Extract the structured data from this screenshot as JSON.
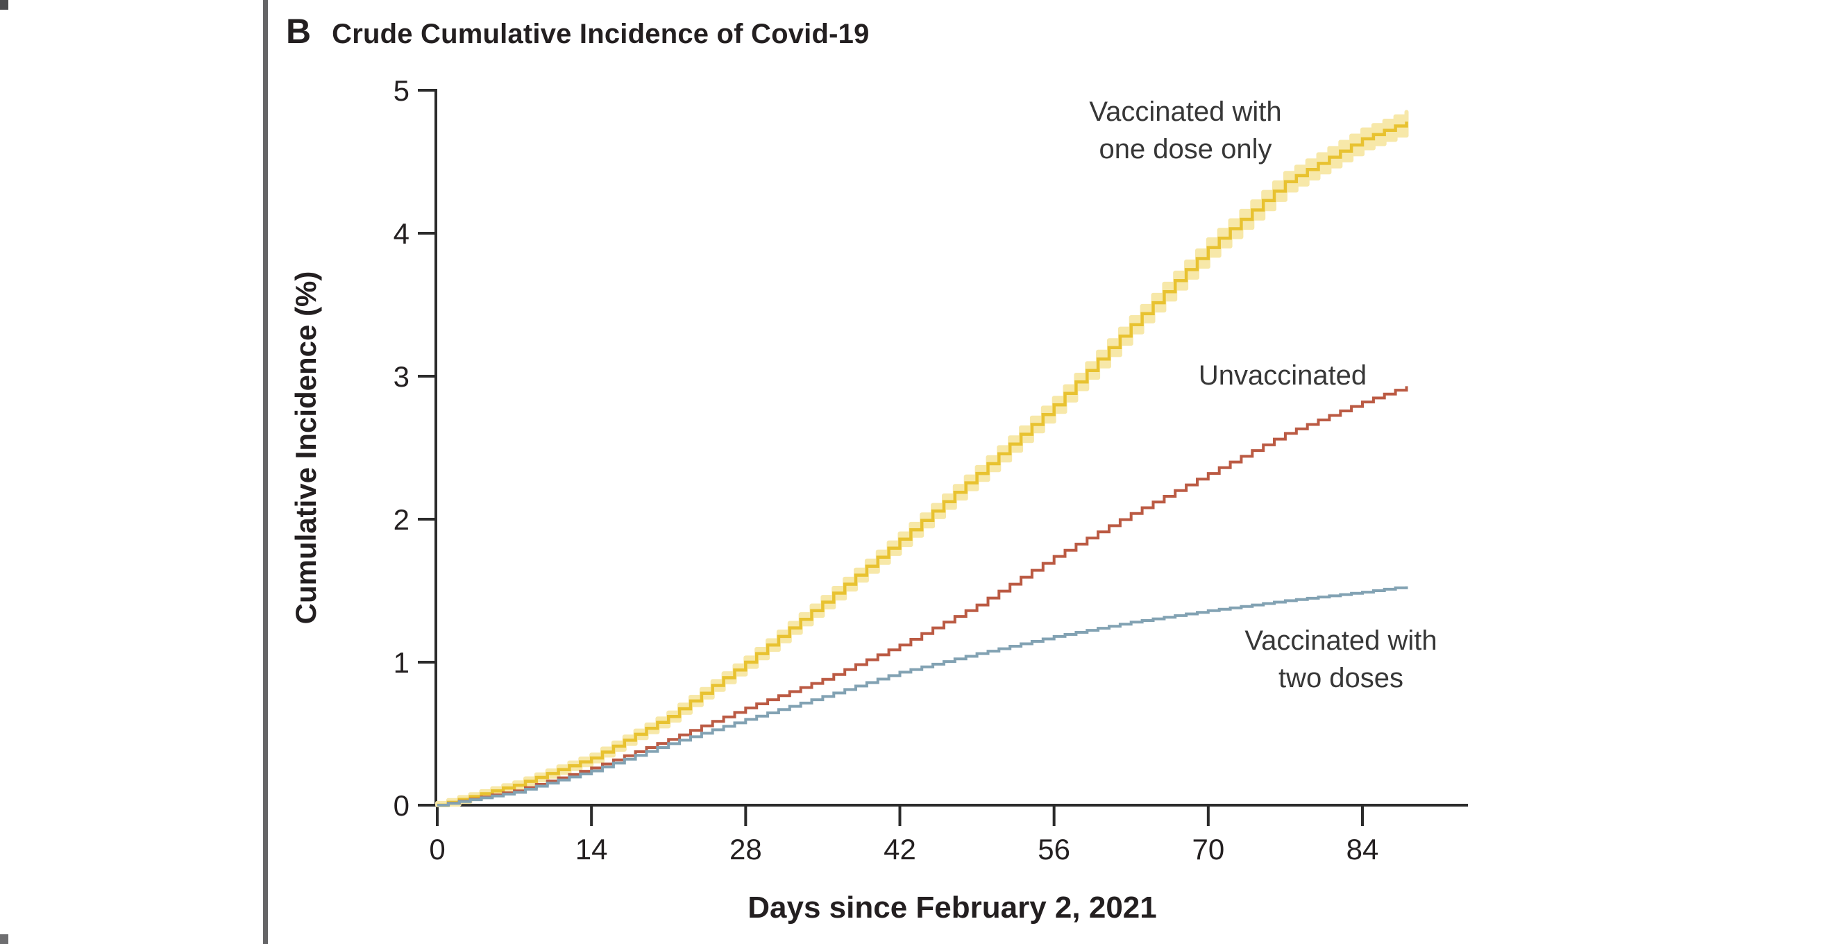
{
  "page": {
    "background": "#ffffff"
  },
  "decorations": {
    "divider_color": "#656567",
    "crop_mark_top_color": "#4c4c4e",
    "crop_mark_bottom_color": "#6e6e70"
  },
  "panel": {
    "label": "B",
    "title": "Crude Cumulative Incidence of Covid-19"
  },
  "chart_data": {
    "type": "line",
    "line_style": "step",
    "title": "Crude Cumulative Incidence of Covid-19",
    "xlabel": "Days since February 2, 2021",
    "ylabel": "Cumulative Incidence (%)",
    "x_ticks": [
      0,
      14,
      28,
      42,
      56,
      70,
      84
    ],
    "y_ticks": [
      0,
      1,
      2,
      3,
      4,
      5
    ],
    "xlim": [
      0,
      94
    ],
    "ylim": [
      0,
      5
    ],
    "grid": false,
    "legend_position": "inline-labels",
    "axis_color": "#2b2b2b",
    "text_color": "#231f20",
    "label_color": "#373737",
    "series": [
      {
        "name": "Vaccinated with one dose only",
        "label_lines": [
          "Vaccinated with",
          "one dose only"
        ],
        "color": "#e8c230",
        "band_color": "#f7e8a9",
        "has_band": true,
        "points": [
          [
            0,
            0
          ],
          [
            7,
            0.14
          ],
          [
            14,
            0.33
          ],
          [
            21,
            0.62
          ],
          [
            28,
            1.0
          ],
          [
            35,
            1.42
          ],
          [
            42,
            1.86
          ],
          [
            49,
            2.32
          ],
          [
            56,
            2.8
          ],
          [
            63,
            3.36
          ],
          [
            70,
            3.9
          ],
          [
            77,
            4.36
          ],
          [
            84,
            4.66
          ],
          [
            88,
            4.78
          ]
        ]
      },
      {
        "name": "Unvaccinated",
        "label_lines": [
          "Unvaccinated"
        ],
        "color": "#bb5a43",
        "band_color": null,
        "has_band": false,
        "points": [
          [
            0,
            0
          ],
          [
            7,
            0.1
          ],
          [
            14,
            0.26
          ],
          [
            21,
            0.46
          ],
          [
            28,
            0.68
          ],
          [
            35,
            0.88
          ],
          [
            42,
            1.12
          ],
          [
            49,
            1.4
          ],
          [
            56,
            1.74
          ],
          [
            63,
            2.04
          ],
          [
            70,
            2.32
          ],
          [
            77,
            2.6
          ],
          [
            84,
            2.82
          ],
          [
            88,
            2.93
          ]
        ]
      },
      {
        "name": "Vaccinated with two doses",
        "label_lines": [
          "Vaccinated with",
          "two doses"
        ],
        "color": "#82a2b3",
        "band_color": null,
        "has_band": false,
        "points": [
          [
            0,
            0
          ],
          [
            7,
            0.09
          ],
          [
            14,
            0.24
          ],
          [
            21,
            0.43
          ],
          [
            28,
            0.6
          ],
          [
            35,
            0.76
          ],
          [
            42,
            0.93
          ],
          [
            49,
            1.06
          ],
          [
            56,
            1.18
          ],
          [
            63,
            1.28
          ],
          [
            70,
            1.36
          ],
          [
            77,
            1.43
          ],
          [
            84,
            1.49
          ],
          [
            88,
            1.53
          ]
        ]
      }
    ]
  }
}
